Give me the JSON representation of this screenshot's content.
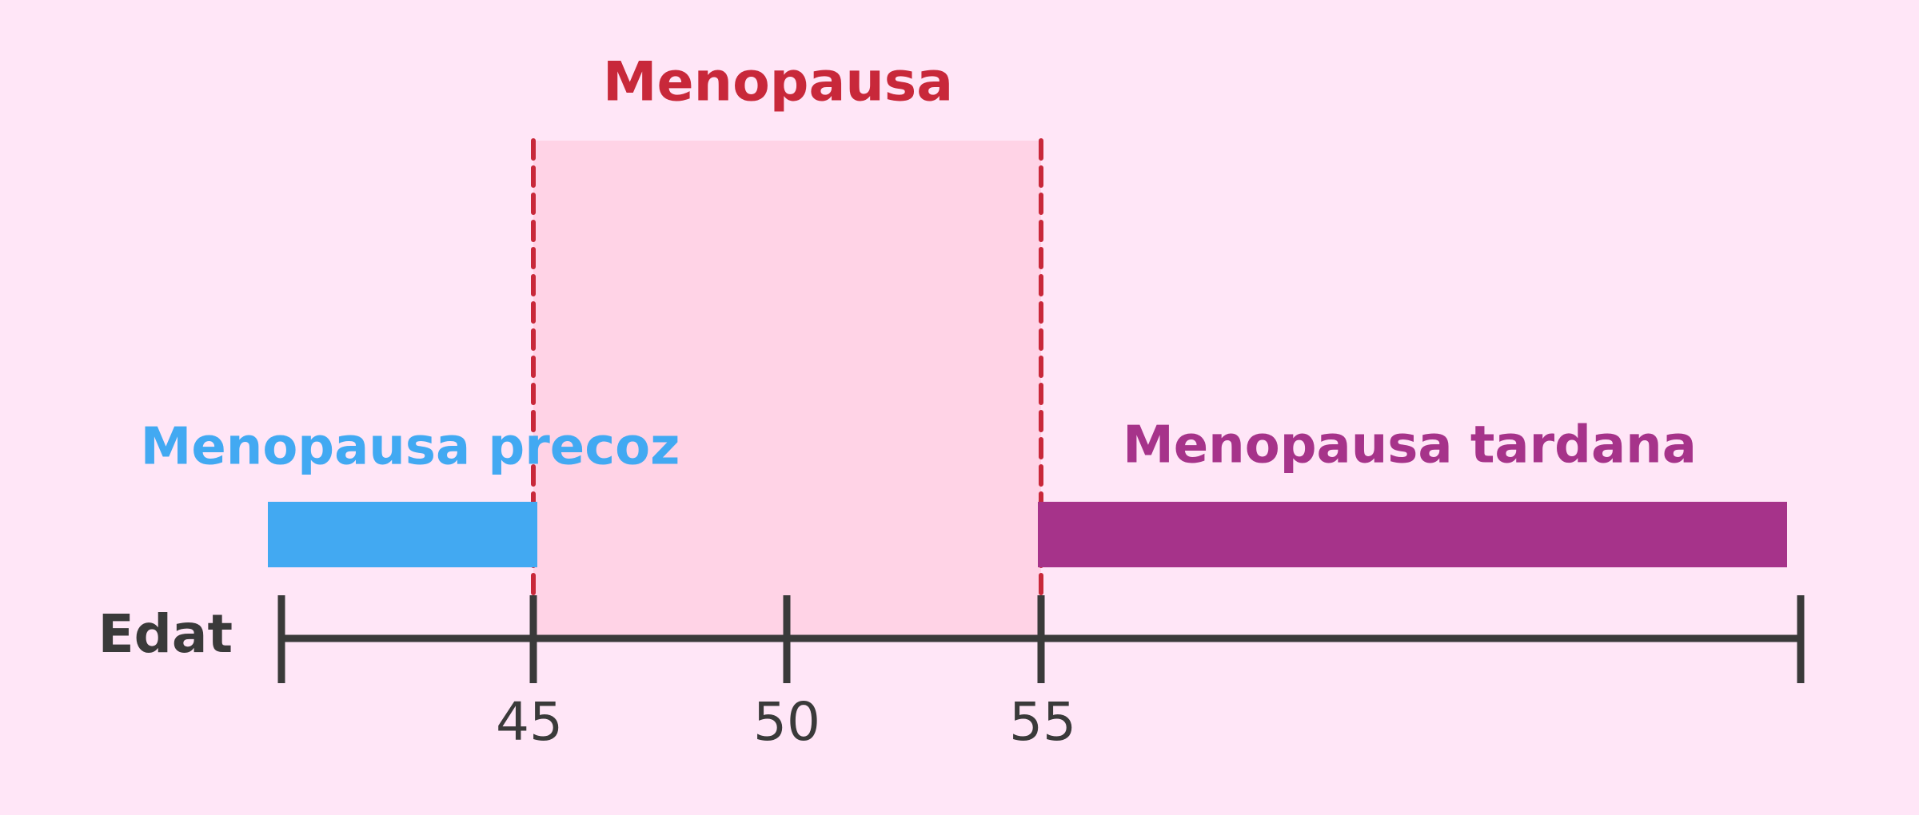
{
  "title": "Menopausa",
  "ranges": {
    "early": "Menopausa precoz",
    "late": "Menopausa tardana"
  },
  "axis": {
    "label": "Edat",
    "ticks": [
      "45",
      "50",
      "55"
    ]
  }
}
